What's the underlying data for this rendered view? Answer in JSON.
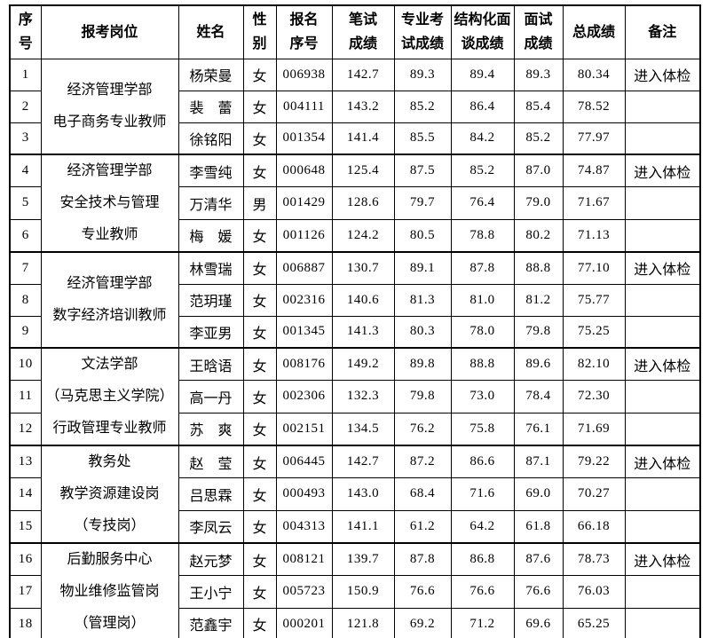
{
  "colors": {
    "background": "#ffffff",
    "text": "#000000",
    "border": "#000000"
  },
  "table": {
    "headers": [
      "序\n号",
      "报考岗位",
      "姓名",
      "性\n别",
      "报名\n序号",
      "笔试\n成绩",
      "专业考\n试成绩",
      "结构化面\n谈成绩",
      "面试\n成绩",
      "总成绩",
      "备注"
    ],
    "groups": [
      {
        "position": "经济管理学部\n电子商务专业教师",
        "rows": [
          {
            "no": "1",
            "name": "杨荣曼",
            "gender": "女",
            "reg_no": "006938",
            "written": "142.7",
            "professional": "89.3",
            "structured": "89.4",
            "interview": "89.3",
            "total": "80.34",
            "remark": "进入体检"
          },
          {
            "no": "2",
            "name": "裴　蕾",
            "gender": "女",
            "reg_no": "004111",
            "written": "143.2",
            "professional": "85.2",
            "structured": "86.4",
            "interview": "85.4",
            "total": "78.52",
            "remark": ""
          },
          {
            "no": "3",
            "name": "徐铭阳",
            "gender": "女",
            "reg_no": "001354",
            "written": "141.4",
            "professional": "85.5",
            "structured": "84.2",
            "interview": "85.2",
            "total": "77.97",
            "remark": ""
          }
        ]
      },
      {
        "position": "经济管理学部\n安全技术与管理\n专业教师",
        "rows": [
          {
            "no": "4",
            "name": "李雪纯",
            "gender": "女",
            "reg_no": "000648",
            "written": "125.4",
            "professional": "87.5",
            "structured": "85.2",
            "interview": "87.0",
            "total": "74.87",
            "remark": "进入体检"
          },
          {
            "no": "5",
            "name": "万清华",
            "gender": "男",
            "reg_no": "001429",
            "written": "128.6",
            "professional": "79.7",
            "structured": "76.4",
            "interview": "79.0",
            "total": "71.67",
            "remark": ""
          },
          {
            "no": "6",
            "name": "梅　媛",
            "gender": "女",
            "reg_no": "001126",
            "written": "124.2",
            "professional": "80.5",
            "structured": "78.8",
            "interview": "80.2",
            "total": "71.13",
            "remark": ""
          }
        ]
      },
      {
        "position": "经济管理学部\n数字经济培训教师",
        "rows": [
          {
            "no": "7",
            "name": "林雪瑞",
            "gender": "女",
            "reg_no": "006887",
            "written": "130.7",
            "professional": "89.1",
            "structured": "87.8",
            "interview": "88.8",
            "total": "77.10",
            "remark": "进入体检"
          },
          {
            "no": "8",
            "name": "范玥瑾",
            "gender": "女",
            "reg_no": "002316",
            "written": "140.6",
            "professional": "81.3",
            "structured": "81.0",
            "interview": "81.2",
            "total": "75.77",
            "remark": ""
          },
          {
            "no": "9",
            "name": "李亚男",
            "gender": "女",
            "reg_no": "001345",
            "written": "141.3",
            "professional": "80.3",
            "structured": "78.0",
            "interview": "79.8",
            "total": "75.25",
            "remark": ""
          }
        ]
      },
      {
        "position": "文法学部\n（马克思主义学院）\n行政管理专业教师",
        "rows": [
          {
            "no": "10",
            "name": "王晗语",
            "gender": "女",
            "reg_no": "008176",
            "written": "149.2",
            "professional": "89.8",
            "structured": "88.8",
            "interview": "89.6",
            "total": "82.10",
            "remark": "进入体检"
          },
          {
            "no": "11",
            "name": "高一丹",
            "gender": "女",
            "reg_no": "002306",
            "written": "132.3",
            "professional": "79.8",
            "structured": "73.0",
            "interview": "78.4",
            "total": "72.30",
            "remark": ""
          },
          {
            "no": "12",
            "name": "苏　爽",
            "gender": "女",
            "reg_no": "002151",
            "written": "134.5",
            "professional": "76.2",
            "structured": "75.8",
            "interview": "76.1",
            "total": "71.69",
            "remark": ""
          }
        ]
      },
      {
        "position": "教务处\n教学资源建设岗\n（专技岗）",
        "rows": [
          {
            "no": "13",
            "name": "赵　莹",
            "gender": "女",
            "reg_no": "006445",
            "written": "142.7",
            "professional": "87.2",
            "structured": "86.6",
            "interview": "87.1",
            "total": "79.22",
            "remark": "进入体检"
          },
          {
            "no": "14",
            "name": "吕思霖",
            "gender": "女",
            "reg_no": "000493",
            "written": "143.0",
            "professional": "68.4",
            "structured": "71.6",
            "interview": "69.0",
            "total": "70.27",
            "remark": ""
          },
          {
            "no": "15",
            "name": "李凤云",
            "gender": "女",
            "reg_no": "004313",
            "written": "141.1",
            "professional": "61.2",
            "structured": "64.2",
            "interview": "61.8",
            "total": "66.18",
            "remark": ""
          }
        ]
      },
      {
        "position": "后勤服务中心\n物业维修监管岗\n（管理岗）",
        "rows": [
          {
            "no": "16",
            "name": "赵元梦",
            "gender": "女",
            "reg_no": "008121",
            "written": "139.7",
            "professional": "87.8",
            "structured": "86.8",
            "interview": "87.6",
            "total": "78.73",
            "remark": "进入体检"
          },
          {
            "no": "17",
            "name": "王小宁",
            "gender": "女",
            "reg_no": "005723",
            "written": "150.9",
            "professional": "76.6",
            "structured": "76.6",
            "interview": "76.6",
            "total": "76.03",
            "remark": ""
          },
          {
            "no": "18",
            "name": "范鑫宇",
            "gender": "女",
            "reg_no": "000201",
            "written": "121.8",
            "professional": "69.2",
            "structured": "71.2",
            "interview": "69.6",
            "total": "65.25",
            "remark": ""
          }
        ]
      }
    ]
  }
}
